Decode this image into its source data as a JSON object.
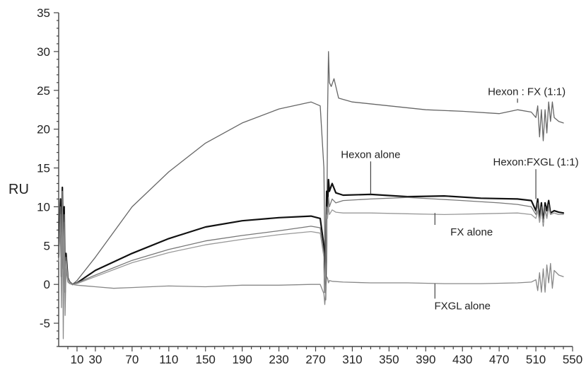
{
  "chart_data": {
    "type": "line",
    "title": "",
    "xlabel": "",
    "ylabel": "RU",
    "xlim": [
      -10,
      550
    ],
    "ylim": [
      -8,
      35
    ],
    "x_ticks": [
      10,
      30,
      70,
      110,
      150,
      190,
      230,
      270,
      310,
      350,
      390,
      430,
      470,
      510,
      550
    ],
    "y_ticks": [
      -5,
      0,
      5,
      10,
      15,
      20,
      25,
      30,
      35
    ],
    "grid": false,
    "legend": "none",
    "series": [
      {
        "name": "Hexon : FX (1:1)",
        "color": "#666666",
        "x": [
          -10,
          -8,
          -7,
          -6,
          -5,
          -4,
          -3,
          -2,
          0,
          2,
          5,
          10,
          30,
          70,
          110,
          150,
          190,
          230,
          265,
          275,
          279,
          280,
          281,
          282,
          283,
          284,
          285,
          287,
          290,
          295,
          310,
          350,
          390,
          430,
          470,
          490,
          505,
          510,
          512,
          514,
          516,
          518,
          520,
          522,
          524,
          526,
          528,
          530,
          535,
          540
        ],
        "y": [
          3.5,
          11,
          1,
          12,
          2,
          10,
          -1,
          4,
          1,
          0.3,
          0,
          0.5,
          3.5,
          10,
          14.5,
          18.2,
          20.8,
          22.6,
          23.5,
          23,
          15,
          5,
          -2,
          3,
          22,
          30,
          26,
          25.5,
          26.5,
          24,
          23.5,
          23,
          22.5,
          22.3,
          22,
          22.5,
          22.2,
          21.5,
          23,
          19,
          22.5,
          18.5,
          22.5,
          19.5,
          23.5,
          21,
          23.5,
          21.5,
          21,
          20.8
        ]
      },
      {
        "name": "Hexon alone",
        "color": "#111111",
        "x": [
          -10,
          -8,
          -7,
          -6,
          -5,
          -4,
          -3,
          -2,
          0,
          2,
          5,
          10,
          30,
          70,
          110,
          150,
          190,
          230,
          265,
          275,
          279,
          280,
          281,
          282,
          283,
          284,
          285,
          288,
          292,
          300,
          330,
          370,
          410,
          450,
          490,
          505,
          510,
          512,
          514,
          516,
          518,
          520,
          522,
          524,
          526,
          530,
          535,
          540
        ],
        "y": [
          3.5,
          11,
          1,
          12.5,
          2,
          10,
          -1,
          4,
          0.8,
          0.3,
          0,
          0.2,
          1.8,
          4,
          5.9,
          7.4,
          8.2,
          8.6,
          8.8,
          8.5,
          5,
          -1,
          3,
          12,
          10,
          13.5,
          12,
          13,
          11.8,
          11.5,
          11.6,
          11.3,
          11.4,
          11.1,
          11,
          10.8,
          9.5,
          11,
          8.5,
          10.5,
          8,
          10.5,
          9.5,
          10.8,
          9.2,
          9.5,
          9.3,
          9.2
        ]
      },
      {
        "name": "Hexon:FXGL (1:1)",
        "color": "#777777",
        "x": [
          -10,
          -8,
          -7,
          -6,
          -5,
          -4,
          -3,
          -2,
          0,
          2,
          5,
          10,
          30,
          70,
          110,
          150,
          190,
          230,
          265,
          275,
          279,
          280,
          281,
          282,
          283,
          284,
          285,
          288,
          292,
          300,
          330,
          370,
          400,
          430,
          470,
          490,
          505,
          510,
          512,
          514,
          516,
          518,
          520,
          522,
          524,
          526,
          530,
          535,
          540
        ],
        "y": [
          3.5,
          10,
          1,
          11,
          2,
          9,
          -1,
          3.5,
          0.8,
          0.3,
          0,
          0.2,
          1.2,
          3.1,
          4.5,
          5.6,
          6.3,
          6.9,
          7.5,
          7.3,
          4,
          -1,
          3,
          10,
          9,
          11.2,
          10,
          11,
          10.5,
          10.8,
          11,
          11.2,
          11,
          10.8,
          10.5,
          10.3,
          10,
          9,
          10.5,
          8,
          10,
          7.5,
          10,
          8.5,
          10.3,
          9,
          9.2,
          9,
          9
        ]
      },
      {
        "name": "FX alone",
        "color": "#999999",
        "x": [
          -10,
          -8,
          -7,
          -6,
          -5,
          -4,
          -3,
          -2,
          0,
          2,
          5,
          10,
          30,
          70,
          110,
          150,
          190,
          230,
          265,
          275,
          279,
          280,
          281,
          282,
          283,
          284,
          285,
          288,
          292,
          300,
          330,
          370,
          410,
          450,
          490,
          505,
          510,
          512,
          514,
          516,
          518,
          520,
          522,
          524,
          526,
          530,
          535,
          540
        ],
        "y": [
          3,
          9,
          1,
          10,
          2,
          8,
          -1,
          3,
          0.6,
          0.2,
          0,
          0.1,
          1,
          2.8,
          4.1,
          5.1,
          5.8,
          6.4,
          6.8,
          6.6,
          3.5,
          -1,
          2.5,
          9,
          8.5,
          10,
          9,
          9.6,
          9.3,
          9.2,
          9.2,
          9.1,
          9,
          9.1,
          9.2,
          9,
          8.5,
          9.5,
          8,
          9.5,
          7.8,
          9.5,
          8.5,
          9.8,
          9,
          9.2,
          9,
          9
        ]
      },
      {
        "name": "FXGL alone",
        "color": "#888888",
        "x": [
          -10,
          -8,
          -7,
          -6,
          -5,
          -4,
          -3,
          -2,
          0,
          2,
          5,
          10,
          30,
          50,
          70,
          110,
          150,
          190,
          230,
          265,
          275,
          279,
          280,
          281,
          282,
          283,
          284,
          285,
          288,
          300,
          330,
          370,
          410,
          450,
          490,
          505,
          510,
          512,
          514,
          516,
          518,
          520,
          522,
          524,
          526,
          528,
          530,
          535,
          540
        ],
        "y": [
          3,
          9,
          -3,
          12,
          -7,
          8,
          -4,
          2,
          0.3,
          0.1,
          0,
          -0.1,
          -0.3,
          -0.5,
          -0.4,
          -0.2,
          -0.3,
          -0.1,
          -0.1,
          0,
          0,
          -1.2,
          -2.6,
          -1,
          1,
          0.8,
          0.2,
          0.5,
          0.4,
          0.3,
          0.2,
          0.2,
          0.1,
          0.1,
          0.2,
          0.3,
          0.6,
          -0.8,
          1.5,
          -1,
          2,
          -1,
          2.5,
          0.2,
          2.7,
          -0.5,
          1.8,
          1.2,
          1
        ]
      }
    ],
    "annotations": [
      {
        "text": "Hexon : FX (1:1)",
        "target": [
          490,
          23.4
        ],
        "label_at": [
          500,
          24.4
        ]
      },
      {
        "text": "Hexon alone",
        "target": [
          330,
          11.6
        ],
        "label_at": [
          330,
          16.3
        ]
      },
      {
        "text": "Hexon:FXGL (1:1)",
        "target": [
          510,
          11
        ],
        "label_at": [
          510,
          15.3
        ]
      },
      {
        "text": "FX alone",
        "target": [
          400,
          9.2
        ],
        "label_at": [
          440,
          6.3
        ]
      },
      {
        "text": "FXGL alone",
        "target": [
          400,
          0.1
        ],
        "label_at": [
          430,
          -3.2
        ]
      }
    ]
  }
}
